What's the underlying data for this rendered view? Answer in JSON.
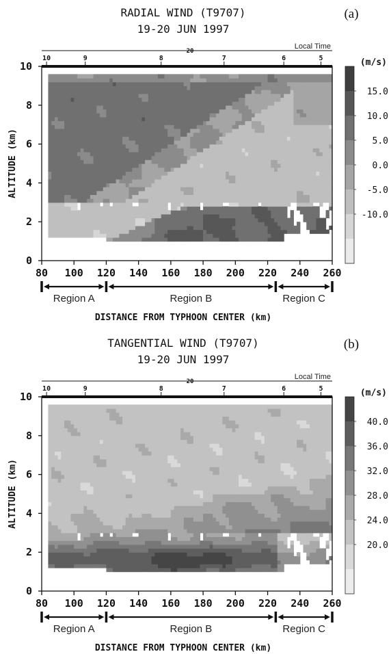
{
  "chart_data": [
    {
      "type": "heatmap",
      "panel_label": "(a)",
      "title": "RADIAL WIND (T9707)",
      "subtitle": "19-20 JUN 1997",
      "xlabel": "DISTANCE FROM TYPHOON CENTER (km)",
      "ylabel": "ALTITUDE (km)",
      "xlim": [
        80,
        260
      ],
      "ylim": [
        0,
        10
      ],
      "xticks": [
        "80",
        "100",
        "120",
        "140",
        "160",
        "180",
        "200",
        "220",
        "240",
        "260"
      ],
      "yticks": [
        "0",
        "2",
        "4",
        "6",
        "8",
        "10"
      ],
      "top_axis": {
        "label": "Local Time",
        "day_label": "20",
        "ticks": [
          {
            "label": "10",
            "x": 83
          },
          {
            "label": "9",
            "x": 107
          },
          {
            "label": "8",
            "x": 154
          },
          {
            "label": "7",
            "x": 193
          },
          {
            "label": "6",
            "x": 230
          },
          {
            "label": "5",
            "x": 253
          }
        ]
      },
      "regions": [
        {
          "label": "Region A",
          "x": [
            80,
            120
          ]
        },
        {
          "label": "Region B",
          "x": [
            120,
            225
          ]
        },
        {
          "label": "Region C",
          "x": [
            225,
            260
          ]
        }
      ],
      "colorbar": {
        "unit": "(m/s)",
        "labels": [
          "15.0",
          "10.0",
          "5.0",
          "0.0",
          "-5.0",
          "-10.0"
        ],
        "colors": [
          "#3e3e3e",
          "#575757",
          "#707070",
          "#8b8b8b",
          "#a5a5a5",
          "#bfbfbf",
          "#d6d6d6",
          "#ebebeb"
        ]
      },
      "field": {
        "description_units": "m/s",
        "regimes": [
          {
            "name": "upper_left_outflow",
            "value_range": [
              5,
              10
            ]
          },
          {
            "name": "mid_level_band",
            "value_range": [
              -10,
              -5
            ]
          },
          {
            "name": "low_level_inflow_right",
            "value_range": [
              5,
              15
            ]
          }
        ]
      }
    },
    {
      "type": "heatmap",
      "panel_label": "(b)",
      "title": "TANGENTIAL WIND (T9707)",
      "subtitle": "19-20 JUN 1997",
      "xlabel": "DISTANCE FROM TYPHOON CENTER (km)",
      "ylabel": "ALTITUDE (km)",
      "xlim": [
        80,
        260
      ],
      "ylim": [
        0,
        10
      ],
      "xticks": [
        "80",
        "100",
        "120",
        "140",
        "160",
        "180",
        "200",
        "220",
        "240",
        "260"
      ],
      "yticks": [
        "0",
        "2",
        "4",
        "6",
        "8",
        "10"
      ],
      "top_axis": {
        "label": "Local Time",
        "day_label": "20",
        "ticks": [
          {
            "label": "10",
            "x": 83
          },
          {
            "label": "9",
            "x": 107
          },
          {
            "label": "8",
            "x": 154
          },
          {
            "label": "7",
            "x": 193
          },
          {
            "label": "6",
            "x": 230
          },
          {
            "label": "5",
            "x": 253
          }
        ]
      },
      "regions": [
        {
          "label": "Region A",
          "x": [
            80,
            120
          ]
        },
        {
          "label": "Region B",
          "x": [
            120,
            225
          ]
        },
        {
          "label": "Region C",
          "x": [
            225,
            260
          ]
        }
      ],
      "colorbar": {
        "unit": "(m/s)",
        "labels": [
          "40.0",
          "36.0",
          "32.0",
          "28.0",
          "24.0",
          "20.0"
        ],
        "colors": [
          "#454545",
          "#5e5e5e",
          "#777777",
          "#909090",
          "#a9a9a9",
          "#c2c2c2",
          "#d9d9d9",
          "#ececec"
        ]
      },
      "field": {
        "description_units": "m/s",
        "regimes": [
          {
            "name": "upper_level",
            "value_range": [
              20,
              28
            ]
          },
          {
            "name": "low_level_jet",
            "value_range": [
              36,
              44
            ]
          }
        ]
      }
    }
  ]
}
